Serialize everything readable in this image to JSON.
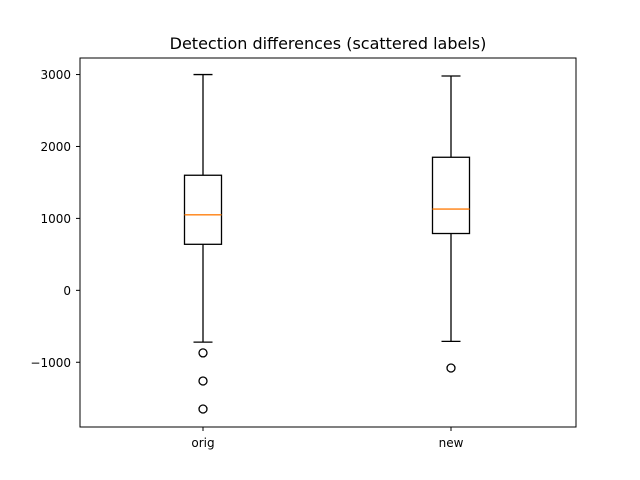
{
  "chart_data": {
    "type": "boxplot",
    "title": "Detection differences (scattered labels)",
    "xlabel": "",
    "ylabel": "",
    "categories": [
      "orig",
      "new"
    ],
    "boxes": [
      {
        "label": "orig",
        "whisker_low": -720,
        "q1": 640,
        "median": 1050,
        "q3": 1600,
        "whisker_high": 3000,
        "fliers": [
          -870,
          -1260,
          -1650
        ]
      },
      {
        "label": "new",
        "whisker_low": -710,
        "q1": 790,
        "median": 1130,
        "q3": 1850,
        "whisker_high": 2980,
        "fliers": [
          -1080
        ]
      }
    ],
    "yticks": [
      -1000,
      0,
      1000,
      2000,
      3000
    ],
    "ytick_labels": [
      "−1000",
      "0",
      "1000",
      "2000",
      "3000"
    ],
    "ylim": [
      -1900,
      3230
    ],
    "grid": false,
    "colors": {
      "box": "#000000",
      "median": "#ff7f0e"
    }
  }
}
